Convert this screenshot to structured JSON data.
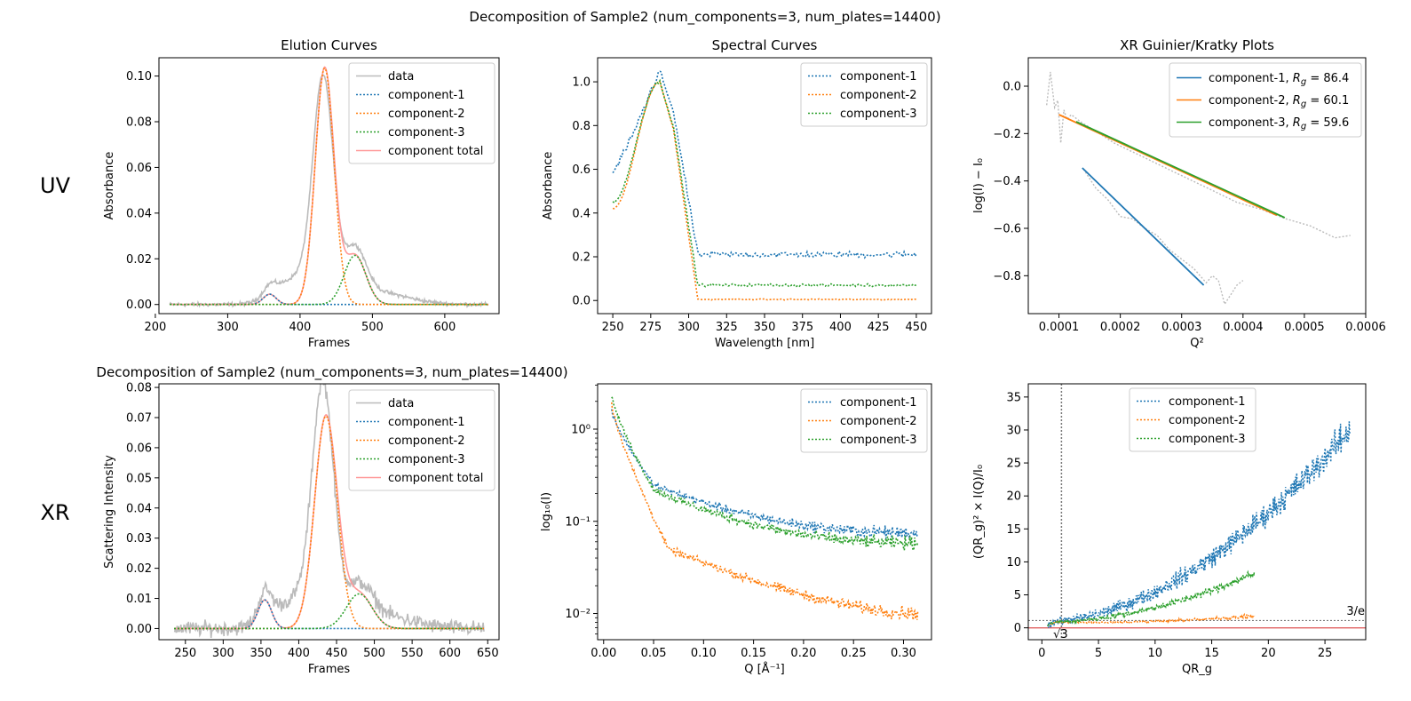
{
  "figure": {
    "suptitle": "Decomposition of Sample2 (num_components=3, num_plates=14400)",
    "subtitle_xr": "Decomposition of Sample2 (num_components=3, num_plates=14400)",
    "row_labels": [
      "UV",
      "XR"
    ]
  },
  "colors": {
    "data": "#bbbbbb",
    "c1": "#1f77b4",
    "c2": "#ff7f0e",
    "c3": "#2ca02c",
    "total": "#ff9999",
    "guide": "#777777",
    "zero": "#e06060"
  },
  "chart_data": [
    {
      "id": "uv_elution",
      "type": "line",
      "title": "Elution Curves",
      "xlabel": "Frames",
      "ylabel": "Absorbance",
      "xlim": [
        205,
        675
      ],
      "ylim": [
        -0.004,
        0.108
      ],
      "xticks": [
        200,
        300,
        400,
        500,
        600
      ],
      "yticks": [
        0.0,
        0.02,
        0.04,
        0.06,
        0.08,
        0.1
      ],
      "ytick_labels": [
        "0.00",
        "0.02",
        "0.04",
        "0.06",
        "0.08",
        "0.10"
      ],
      "x_range": [
        220,
        660
      ],
      "legend": [
        "data",
        "component-1",
        "component-2",
        "component-3",
        "component total"
      ],
      "legend_loc": "upper right",
      "peaks": [
        {
          "series": "component-1",
          "center": 358,
          "height": 0.0045,
          "width": 9
        },
        {
          "series": "component-2",
          "center": 434,
          "height": 0.1035,
          "width": 13
        },
        {
          "series": "component-3",
          "center": 476,
          "height": 0.0215,
          "width": 15
        }
      ],
      "data_peak": {
        "center": 432,
        "height": 0.094
      },
      "noise": 0.001
    },
    {
      "id": "uv_spectral",
      "type": "line",
      "title": "Spectral Curves",
      "xlabel": "Wavelength [nm]",
      "ylabel": "Absorbance",
      "xlim": [
        240,
        460
      ],
      "ylim": [
        -0.06,
        1.11
      ],
      "xticks": [
        250,
        275,
        300,
        325,
        350,
        375,
        400,
        425,
        450
      ],
      "yticks": [
        0.0,
        0.2,
        0.4,
        0.6,
        0.8,
        1.0
      ],
      "ytick_labels": [
        "0.0",
        "0.2",
        "0.4",
        "0.6",
        "0.8",
        "1.0"
      ],
      "x_range": [
        250,
        450
      ],
      "legend": [
        "component-1",
        "component-2",
        "component-3"
      ],
      "legend_loc": "upper right",
      "baselines": {
        "component-1": 0.21,
        "component-2": 0.005,
        "component-3": 0.07
      },
      "peak_values": {
        "component-1": 1.05,
        "component-2": 1.0,
        "component-3": 1.0
      },
      "start_values": {
        "component-1": 0.58,
        "component-2": 0.42,
        "component-3": 0.45
      }
    },
    {
      "id": "uv_guinier",
      "type": "line",
      "title": "XR Guinier/Kratky Plots",
      "xlabel": "Q²",
      "ylabel": "log(I) − I₀",
      "xlim": [
        5e-05,
        0.0006
      ],
      "ylim": [
        -0.96,
        0.12
      ],
      "xticks": [
        0.0001,
        0.0002,
        0.0003,
        0.0004,
        0.0005,
        0.0006
      ],
      "xtick_labels": [
        "0.0001",
        "0.0002",
        "0.0003",
        "0.0004",
        "0.0005",
        "0.0006"
      ],
      "yticks": [
        -0.8,
        -0.6,
        -0.4,
        -0.2,
        0.0
      ],
      "ytick_labels": [
        "−0.8",
        "−0.6",
        "−0.4",
        "−0.2",
        "0.0"
      ],
      "legend": [
        "component-1, R_g = 86.4",
        "component-2, R_g = 60.1",
        "component-3, R_g = 59.6"
      ],
      "legend_loc": "upper right",
      "fits": [
        {
          "series": "component-1",
          "x": [
            0.000138,
            0.000336
          ],
          "y": [
            -0.345,
            -0.84
          ]
        },
        {
          "series": "component-2",
          "x": [
            0.0001,
            0.000455
          ],
          "y": [
            -0.12,
            -0.545
          ]
        },
        {
          "series": "component-3",
          "x": [
            0.000128,
            0.000468
          ],
          "y": [
            -0.15,
            -0.555
          ]
        }
      ],
      "scatter": [
        {
          "x": [
            8e-05,
            8.6e-05,
            9.3e-05,
            9.8e-05,
            0.000103,
            0.000108,
            0.000113,
            0.00012,
            0.000135,
            0.00016,
            0.00019,
            0.00023,
            0.00027,
            0.00031,
            0.00035,
            0.00039,
            0.00043,
            0.00047,
            0.00051,
            0.00055,
            0.000575
          ],
          "y": [
            -0.08,
            0.06,
            -0.09,
            -0.06,
            -0.24,
            -0.1,
            -0.14,
            -0.12,
            -0.15,
            -0.19,
            -0.24,
            -0.29,
            -0.34,
            -0.39,
            -0.44,
            -0.49,
            -0.52,
            -0.56,
            -0.59,
            -0.64,
            -0.63
          ]
        },
        {
          "x": [
            0.00014,
            0.00016,
            0.00018,
            0.0002,
            0.00022,
            0.00024,
            0.00026,
            0.00028,
            0.0003,
            0.00032,
            0.00034,
            0.00035,
            0.00036,
            0.00037,
            0.00038,
            0.00039,
            0.0004
          ],
          "y": [
            -0.35,
            -0.43,
            -0.48,
            -0.55,
            -0.56,
            -0.6,
            -0.63,
            -0.69,
            -0.73,
            -0.77,
            -0.83,
            -0.8,
            -0.82,
            -0.92,
            -0.88,
            -0.84,
            -0.82
          ]
        }
      ]
    },
    {
      "id": "xr_elution",
      "type": "line",
      "title": "",
      "xlabel": "Frames",
      "ylabel": "Scattering Intensity",
      "xlim": [
        215,
        665
      ],
      "ylim": [
        -0.0037,
        0.0812
      ],
      "xticks": [
        250,
        300,
        350,
        400,
        450,
        500,
        550,
        600,
        650
      ],
      "yticks": [
        0.0,
        0.01,
        0.02,
        0.03,
        0.04,
        0.05,
        0.06,
        0.07,
        0.08
      ],
      "ytick_labels": [
        "0.00",
        "0.01",
        "0.02",
        "0.03",
        "0.04",
        "0.05",
        "0.06",
        "0.07",
        "0.08"
      ],
      "x_range": [
        235,
        645
      ],
      "legend": [
        "data",
        "component-1",
        "component-2",
        "component-3",
        "component total"
      ],
      "legend_loc": "upper right",
      "peaks": [
        {
          "series": "component-1",
          "center": 355,
          "height": 0.0095,
          "width": 9
        },
        {
          "series": "component-2",
          "center": 436,
          "height": 0.0705,
          "width": 15
        },
        {
          "series": "component-3",
          "center": 480,
          "height": 0.0115,
          "width": 17
        }
      ],
      "data_peak": {
        "center": 432,
        "height": 0.077
      },
      "noise": 0.003
    },
    {
      "id": "xr_logI",
      "type": "line",
      "title": "",
      "xlabel": "Q [Å⁻¹]",
      "ylabel": "log₁₀(I)",
      "yscale": "log",
      "xlim": [
        -0.006,
        0.328
      ],
      "ylim": [
        0.0052,
        3.1
      ],
      "xticks": [
        0.0,
        0.05,
        0.1,
        0.15,
        0.2,
        0.25,
        0.3
      ],
      "xtick_labels": [
        "0.00",
        "0.05",
        "0.10",
        "0.15",
        "0.20",
        "0.25",
        "0.30"
      ],
      "yticks": [
        0.01,
        0.1,
        1
      ],
      "ytick_labels": [
        "10⁻²",
        "10⁻¹",
        "10⁰"
      ],
      "x_range": [
        0.008,
        0.315
      ],
      "legend": [
        "component-1",
        "component-2",
        "component-3"
      ],
      "legend_loc": "upper right",
      "start_values": {
        "component-1": 1.6,
        "component-2": 1.9,
        "component-3": 2.3
      },
      "knee_values": {
        "component-1": 0.25,
        "component-2": 0.05,
        "component-3": 0.22
      },
      "end_values": {
        "component-1": 0.075,
        "component-2": 0.01,
        "component-3": 0.058
      }
    },
    {
      "id": "xr_kratky",
      "type": "line",
      "title": "",
      "xlabel": "QR_g",
      "ylabel": "(QR_g)² × I(Q)/I₀",
      "xlim": [
        -1.2,
        28.6
      ],
      "ylim": [
        -1.8,
        37
      ],
      "xticks": [
        0,
        5,
        10,
        15,
        20,
        25
      ],
      "yticks": [
        0,
        5,
        10,
        15,
        20,
        25,
        30,
        35
      ],
      "legend": [
        "component-1",
        "component-2",
        "component-3"
      ],
      "legend_loc": "upper center",
      "annotations": {
        "sqrt3": "√3",
        "three_over_e": "3/e"
      },
      "guides": {
        "vline_x": 1.732,
        "hline_y": 1.104
      },
      "curves": [
        {
          "series": "component-1",
          "x_end": 27.2,
          "end_value": 30
        },
        {
          "series": "component-2",
          "x_end": 18.8,
          "end_value": 1.8
        },
        {
          "series": "component-3",
          "x_end": 18.8,
          "end_value": 8.3
        }
      ]
    }
  ]
}
